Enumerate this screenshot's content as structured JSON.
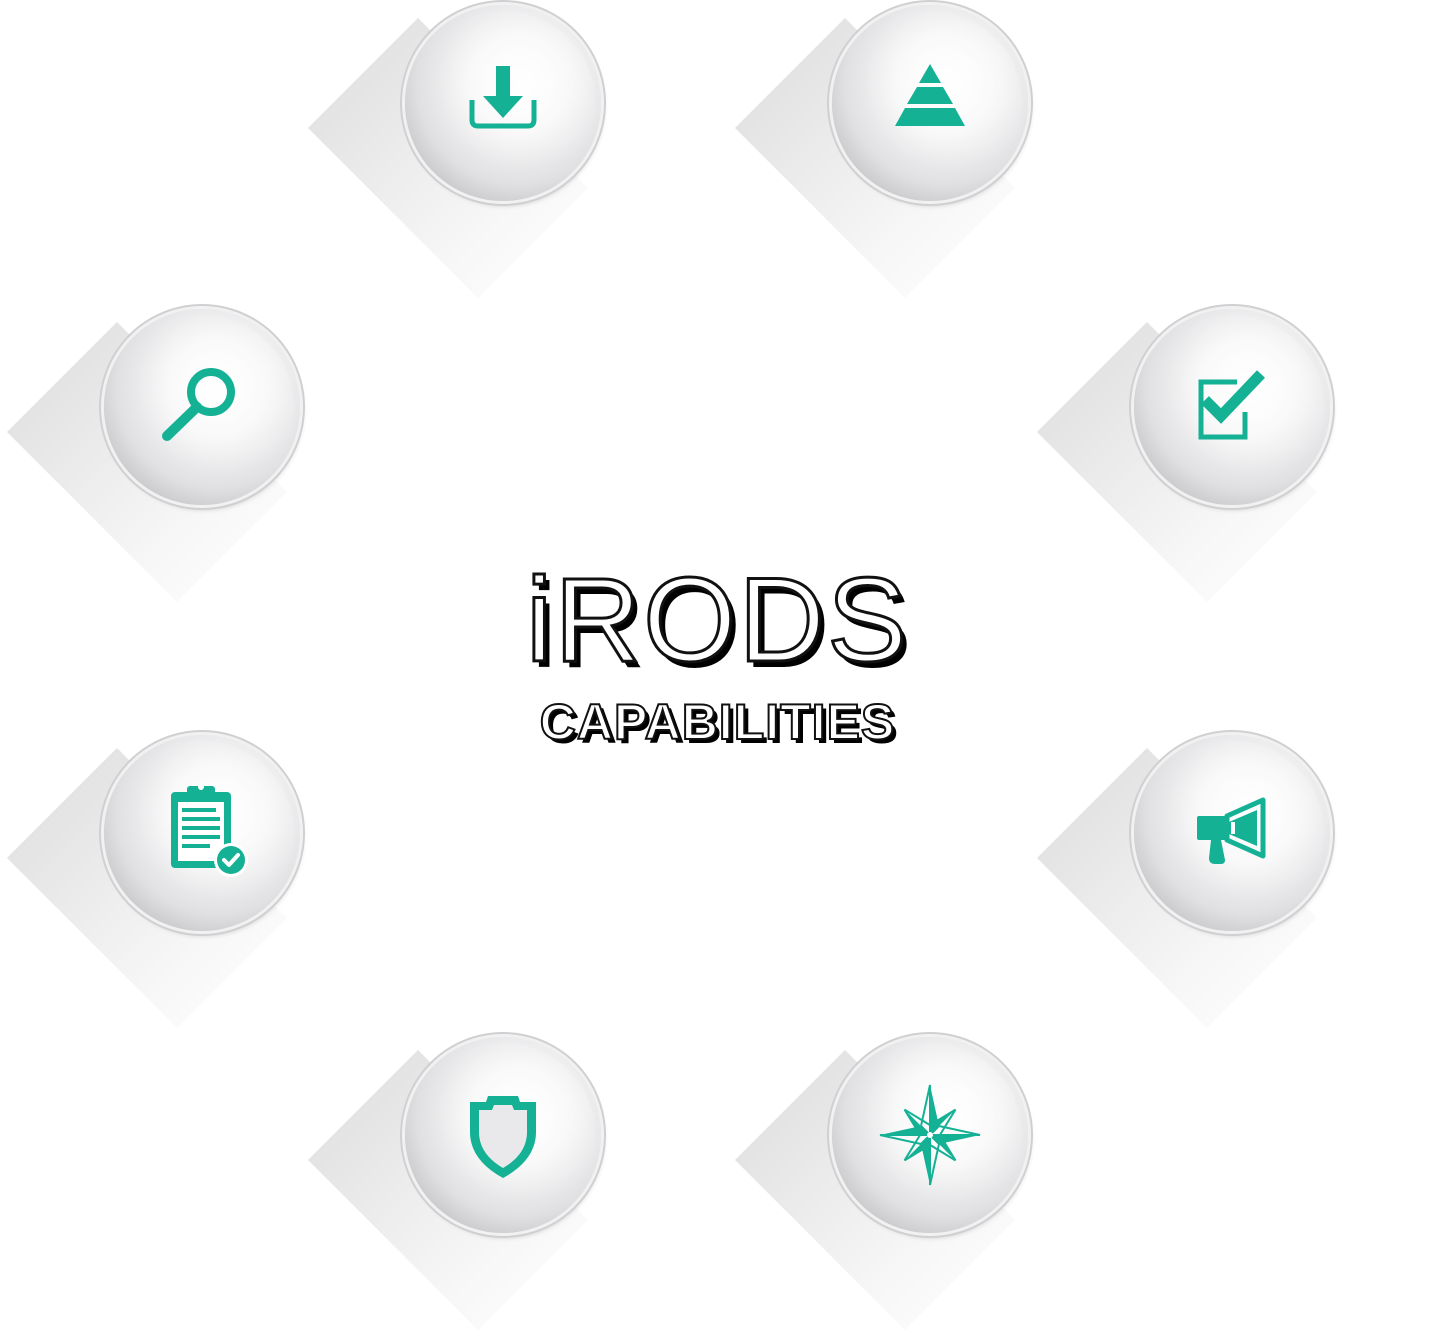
{
  "title": "iRODS",
  "subtitle": "CAPABILITIES",
  "accent_color": "#14b195",
  "capabilities": [
    {
      "icon": "download-icon"
    },
    {
      "icon": "pyramid-icon"
    },
    {
      "icon": "search-icon"
    },
    {
      "icon": "checkbox-icon"
    },
    {
      "icon": "clipboard-check-icon"
    },
    {
      "icon": "megaphone-icon"
    },
    {
      "icon": "shield-icon"
    },
    {
      "icon": "compass-rose-icon"
    }
  ]
}
